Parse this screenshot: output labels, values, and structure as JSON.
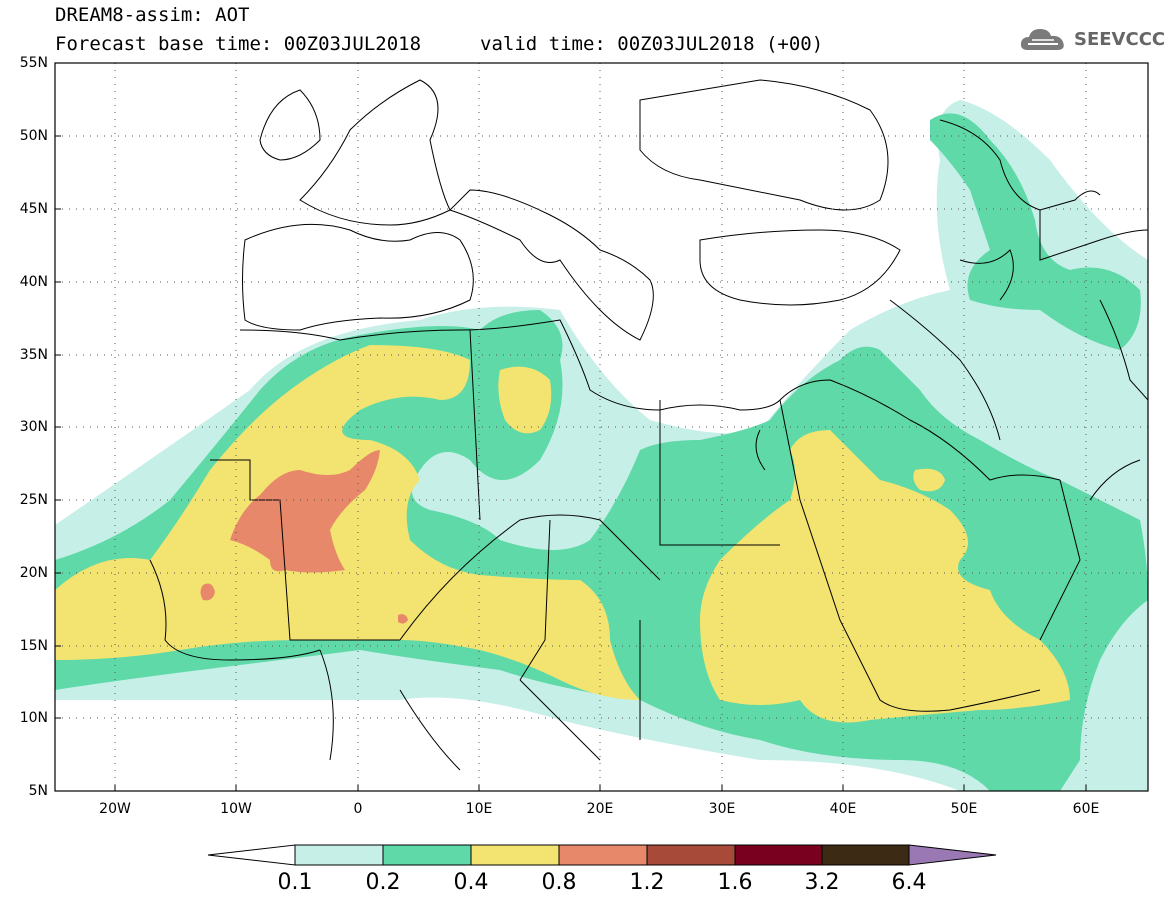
{
  "header": {
    "title_line1": "DREAM8-assim: AOT",
    "title_line2": "Forecast base time: 00Z03JUL2018",
    "valid_time": "valid time: 00Z03JUL2018 (+00)",
    "logo_text": "SEEVCCC",
    "logo_icon": "cloud-logo-icon"
  },
  "map": {
    "lat_labels": [
      "55N",
      "50N",
      "45N",
      "40N",
      "35N",
      "30N",
      "25N",
      "20N",
      "15N",
      "10N",
      "5N"
    ],
    "lon_labels": [
      "20W",
      "10W",
      "0",
      "10E",
      "20E",
      "30E",
      "40E",
      "50E",
      "60E"
    ],
    "lon_range": [
      -25,
      65
    ],
    "lat_range": [
      5,
      55
    ],
    "gridlines": "dotted",
    "colors": {
      "c01": "#c6efe8",
      "c02": "#5fd9a7",
      "c04": "#f3e471",
      "c08": "#e8886a",
      "border": "#000000"
    }
  },
  "colorbar": {
    "labels": [
      "0.1",
      "0.2",
      "0.4",
      "0.8",
      "1.2",
      "1.6",
      "3.2",
      "6.4"
    ],
    "colors": [
      "#ffffff",
      "#c6efe8",
      "#5fd9a7",
      "#f3e471",
      "#e8886a",
      "#a84a39",
      "#7a0020",
      "#3d2a14",
      "#9a78b4"
    ]
  }
}
